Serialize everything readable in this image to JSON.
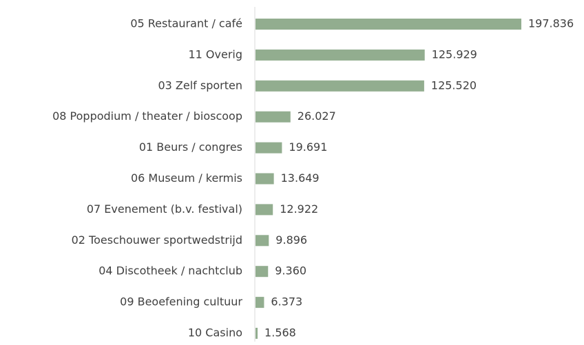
{
  "chart_data": {
    "type": "bar",
    "orientation": "horizontal",
    "categories": [
      "05 Restaurant / café",
      "11 Overig",
      "03 Zelf sporten",
      "08 Poppodium / theater / bioscoop",
      "01 Beurs / congres",
      "06 Museum / kermis",
      "07 Evenement (b.v. festival)",
      "02 Toeschouwer sportwedstrijd",
      "04 Discotheek / nachtclub",
      "09 Beoefening cultuur",
      "10 Casino"
    ],
    "values": [
      197836,
      125929,
      125520,
      26027,
      19691,
      13649,
      12922,
      9896,
      9360,
      6373,
      1568
    ],
    "value_labels": [
      "197.836",
      "125.929",
      "125.520",
      "26.027",
      "19.691",
      "13.649",
      "12.922",
      "9.896",
      "9.360",
      "6.373",
      "1.568"
    ],
    "color": "#92ad8f"
  }
}
